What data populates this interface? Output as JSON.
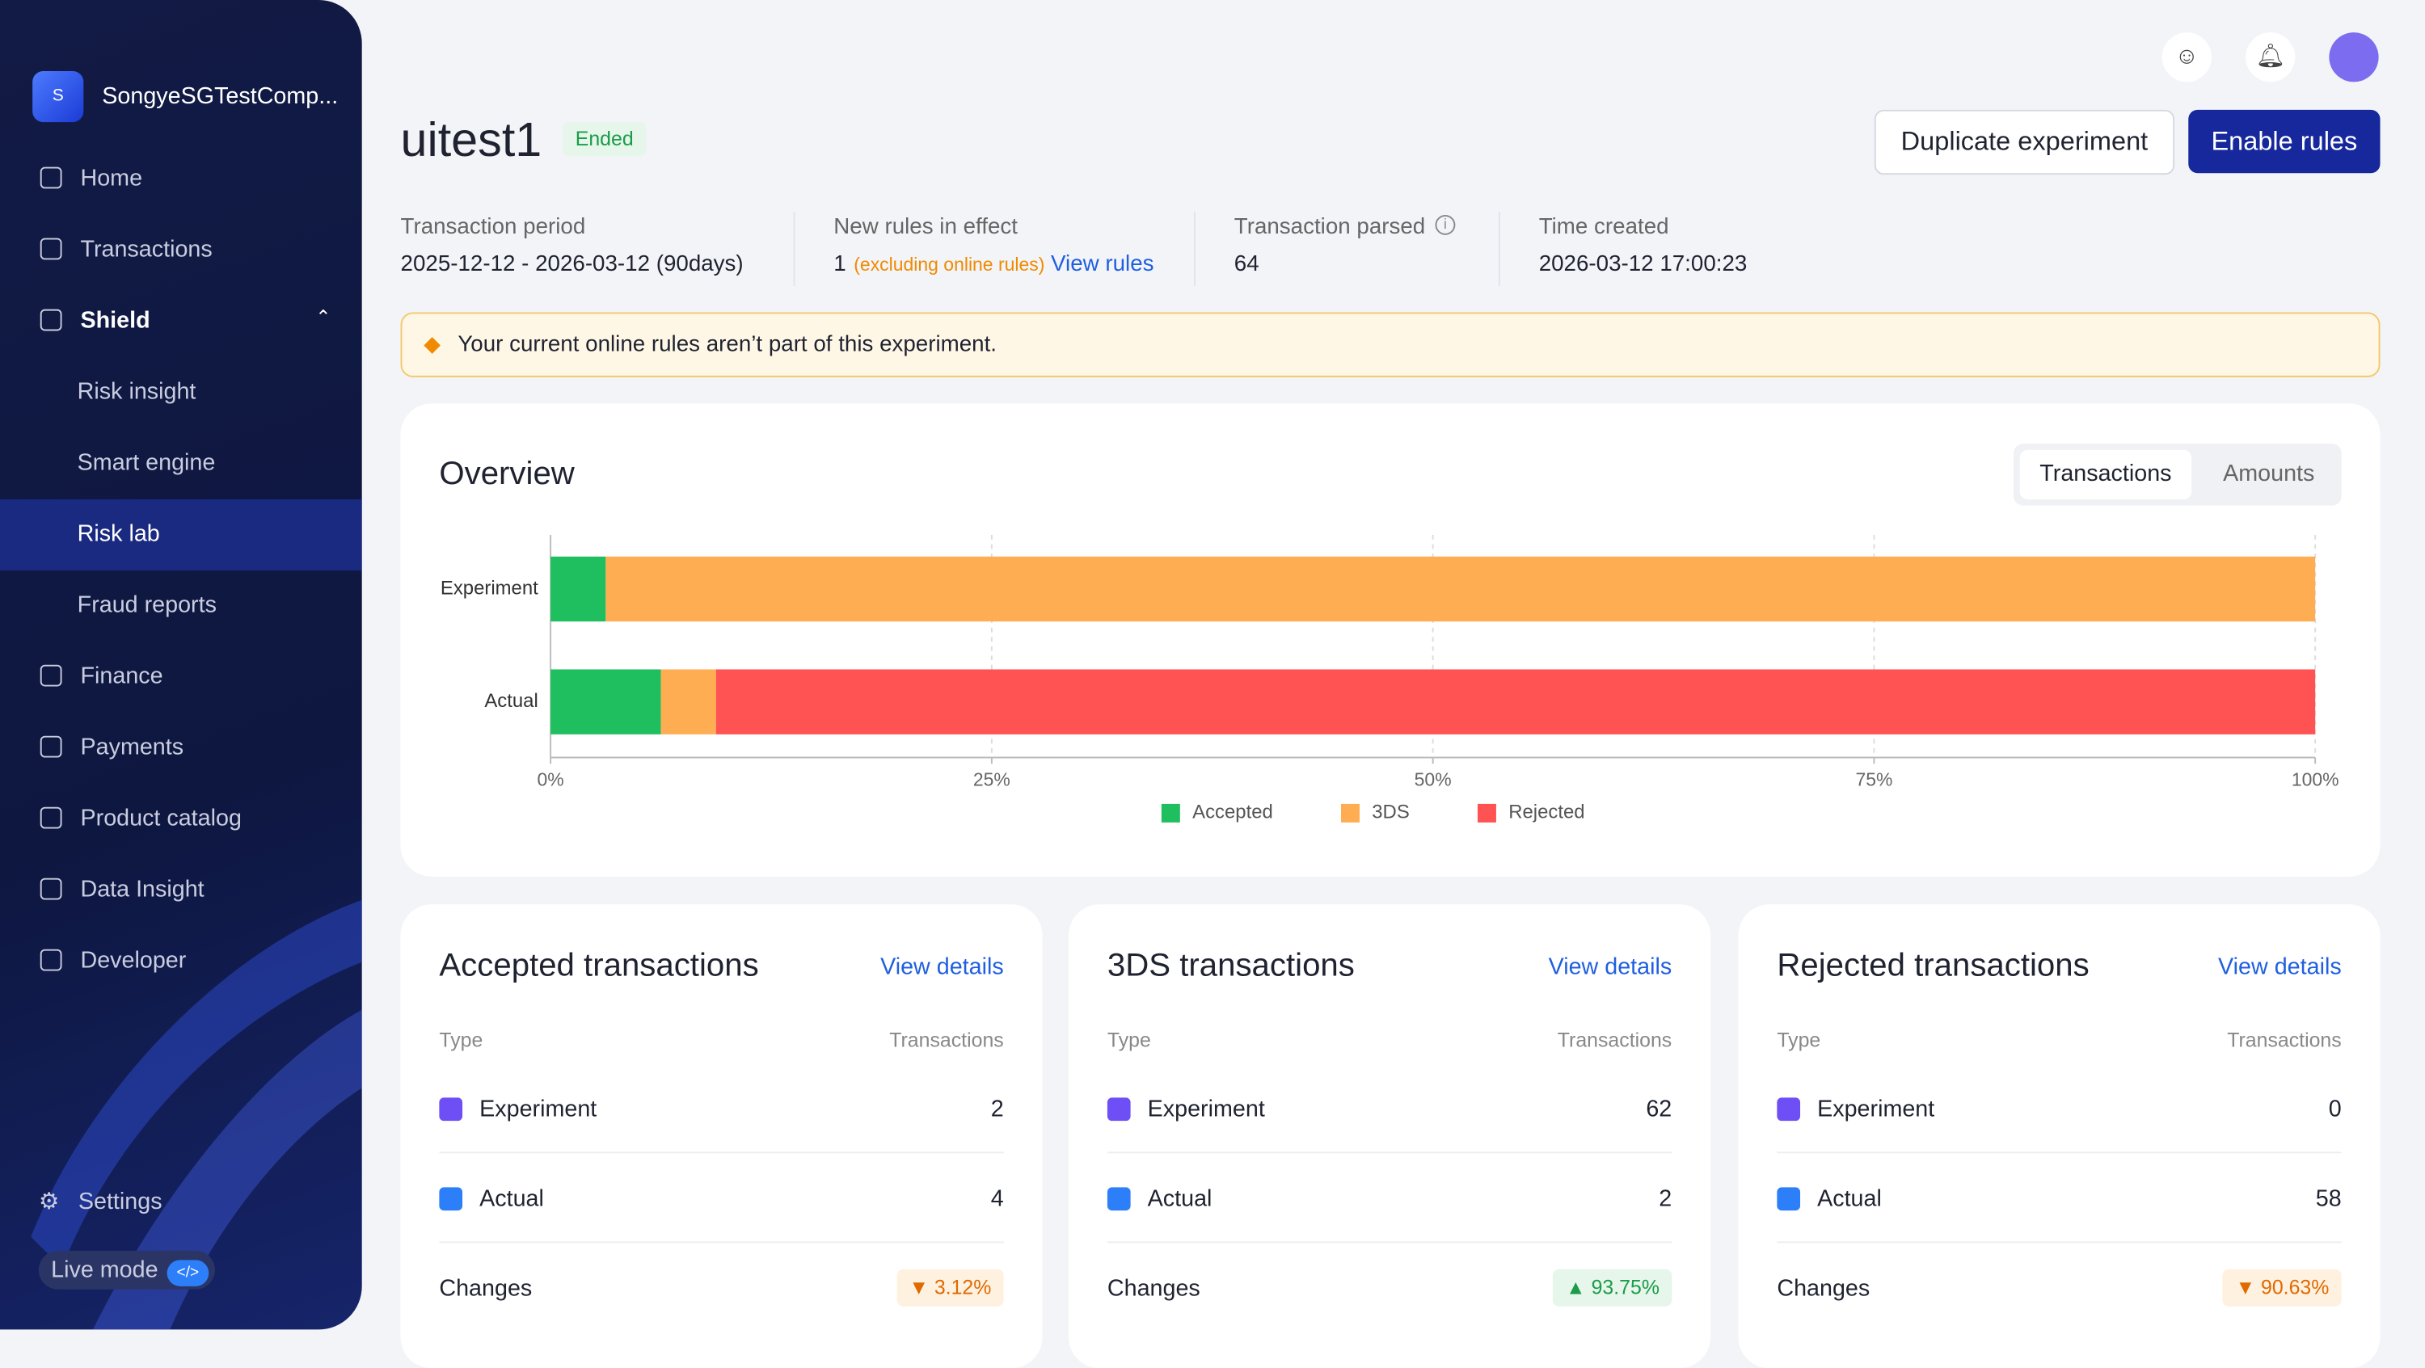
{
  "sidebar": {
    "company_initial": "S",
    "company": "SongyeSGTestComp...",
    "nav": [
      {
        "label": "Home"
      },
      {
        "label": "Transactions"
      },
      {
        "label": "Shield",
        "children": [
          "Risk insight",
          "Smart engine",
          "Risk lab",
          "Fraud reports"
        ]
      },
      {
        "label": "Finance"
      },
      {
        "label": "Payments"
      },
      {
        "label": "Product catalog"
      },
      {
        "label": "Data Insight"
      },
      {
        "label": "Developer"
      }
    ],
    "settings": "Settings",
    "live_mode": "Live mode"
  },
  "header": {
    "title": "uitest1",
    "status": "Ended",
    "buttons": [
      "Duplicate experiment",
      "Enable rules"
    ]
  },
  "summary": [
    {
      "label": "Transaction period",
      "value": "2025-12-12 - 2026-03-12 (90days)"
    },
    {
      "label": "New rules in effect",
      "value": "1",
      "note": "(excluding online rules)",
      "link": "View rules"
    },
    {
      "label": "Transaction parsed",
      "value": "64"
    },
    {
      "label": "Time created",
      "value": "2026-03-12 17:00:23"
    }
  ],
  "warning": "Your current online rules aren’t part of this experiment.",
  "overview": {
    "title": "Overview",
    "tabs": [
      "Transactions",
      "Amounts"
    ]
  },
  "chart_data": {
    "type": "stacked-bar-horizontal",
    "categories": [
      "Experiment",
      "Actual"
    ],
    "series": [
      {
        "name": "Accepted",
        "color": "#1fbf5f",
        "values": [
          3.125,
          6.25
        ]
      },
      {
        "name": "3DS",
        "color": "#ffad52",
        "values": [
          96.875,
          3.125
        ]
      },
      {
        "name": "Rejected",
        "color": "#ff5252",
        "values": [
          0,
          90.625
        ]
      }
    ],
    "xlim": [
      0,
      100
    ],
    "xticks": [
      {
        "value": 0,
        "label": "0%"
      },
      {
        "value": 25,
        "label": "25%"
      },
      {
        "value": 50,
        "label": "50%"
      },
      {
        "value": 75,
        "label": "75%"
      },
      {
        "value": 100,
        "label": "100%"
      }
    ],
    "grid": true,
    "legend": "bottom"
  },
  "cards": [
    {
      "title": "Accepted transactions",
      "link": "View details",
      "col_type": "Type",
      "col_value": "Transactions",
      "rows": [
        {
          "label": "Experiment",
          "value": 2
        },
        {
          "label": "Actual",
          "value": 4
        }
      ],
      "changes_label": "Changes",
      "change": "3.12%",
      "direction": "down"
    },
    {
      "title": "3DS transactions",
      "link": "View details",
      "col_type": "Type",
      "col_value": "Transactions",
      "rows": [
        {
          "label": "Experiment",
          "value": 62
        },
        {
          "label": "Actual",
          "value": 2
        }
      ],
      "changes_label": "Changes",
      "change": "93.75%",
      "direction": "up"
    },
    {
      "title": "Rejected transactions",
      "link": "View details",
      "col_type": "Type",
      "col_value": "Transactions",
      "rows": [
        {
          "label": "Experiment",
          "value": 0
        },
        {
          "label": "Actual",
          "value": 58
        }
      ],
      "changes_label": "Changes",
      "change": "90.63%",
      "direction": "down"
    }
  ]
}
